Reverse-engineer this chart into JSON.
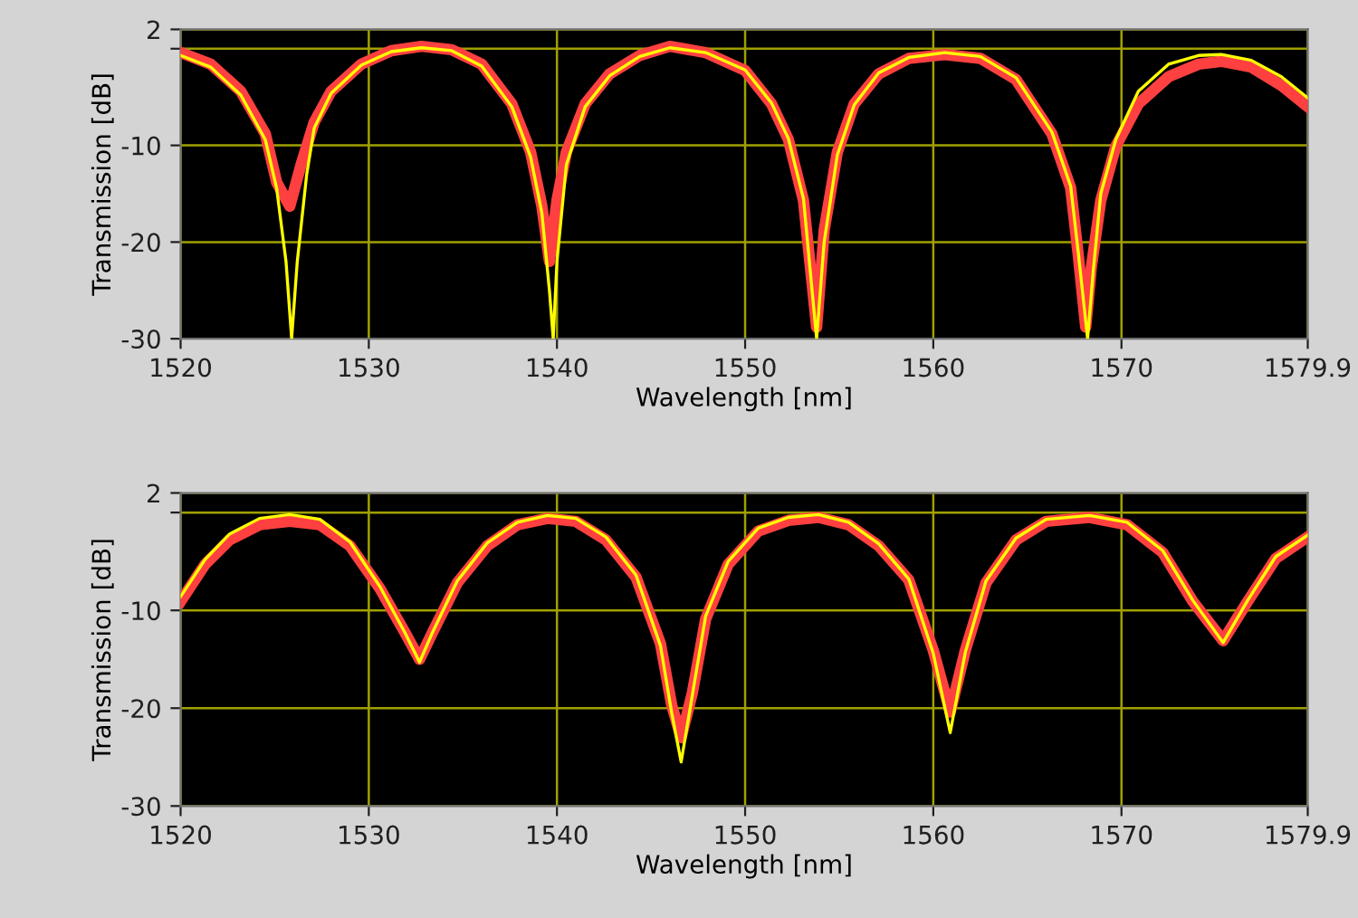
{
  "chart_data": [
    {
      "type": "line",
      "xlabel": "Wavelength [nm]",
      "ylabel": "Transmission [dB]",
      "xlim": [
        1520,
        1579.9
      ],
      "ylim": [
        -30,
        2
      ],
      "xticks": [
        1520,
        1530,
        1540,
        1550,
        1560,
        1570,
        1579.9
      ],
      "yticks": [
        2,
        {
          "value": 0,
          "label": null
        },
        -10,
        -20,
        -30
      ],
      "grid": true,
      "marker": "none",
      "line_style": "solid",
      "series": [
        {
          "color": "#ff4040",
          "x": [
            1520,
            1521.6,
            1523.2,
            1524.5,
            1525.1,
            1525.8,
            1526.4,
            1527.1,
            1528.0,
            1529.6,
            1531.2,
            1532.8,
            1534.4,
            1536.0,
            1537.6,
            1538.6,
            1539.2,
            1539.6,
            1540.0,
            1540.5,
            1541.5,
            1542.8,
            1544.4,
            1546.0,
            1547.9,
            1550.0,
            1551.4,
            1552.3,
            1553.1,
            1553.8,
            1554.2,
            1554.9,
            1555.8,
            1557.1,
            1558.7,
            1560.6,
            1562.5,
            1564.4,
            1566.3,
            1567.3,
            1567.7,
            1568.1,
            1568.4,
            1568.9,
            1569.7,
            1570.9,
            1572.5,
            1574.1,
            1575.3,
            1576.9,
            1578.5,
            1579.9
          ],
          "values": [
            -0.4,
            -1.6,
            -4.4,
            -8.8,
            -13.8,
            -16.3,
            -12,
            -7.6,
            -4.4,
            -1.6,
            -0.2,
            0.25,
            -0.1,
            -1.6,
            -5.7,
            -10.7,
            -16.3,
            -22,
            -15.7,
            -10.7,
            -5.7,
            -2.6,
            -0.7,
            0.25,
            -0.4,
            -2.25,
            -5.7,
            -9.4,
            -15.7,
            -28.8,
            -18.8,
            -10.7,
            -5.7,
            -2.6,
            -1,
            -0.6,
            -1,
            -3.2,
            -8.8,
            -14.4,
            -21.3,
            -28.8,
            -22.6,
            -15.7,
            -10.1,
            -5.7,
            -2.9,
            -1.6,
            -1.3,
            -1.9,
            -3.8,
            -6
          ]
        },
        {
          "color": "#ffff00",
          "x": [
            1520,
            1521.6,
            1523.2,
            1524.5,
            1525.1,
            1525.6,
            1525.9,
            1526.2,
            1526.7,
            1527.1,
            1528.0,
            1529.6,
            1531.2,
            1532.8,
            1534.4,
            1536.0,
            1537.6,
            1538.6,
            1539.2,
            1539.6,
            1539.8,
            1540.0,
            1540.5,
            1541.5,
            1542.8,
            1544.4,
            1546.0,
            1547.9,
            1550.0,
            1551.4,
            1552.3,
            1553.1,
            1553.8,
            1554.2,
            1554.9,
            1555.8,
            1557.1,
            1558.7,
            1560.6,
            1562.5,
            1564.4,
            1566.3,
            1567.3,
            1567.7,
            1568.2,
            1568.5,
            1568.9,
            1569.7,
            1570.9,
            1572.5,
            1574.1,
            1575.3,
            1576.9,
            1578.5,
            1579.9
          ],
          "values": [
            -0.7,
            -1.9,
            -4.8,
            -9.4,
            -14.4,
            -22,
            -30,
            -22,
            -13,
            -8.2,
            -4.6,
            -1.7,
            -0.3,
            0.1,
            -0.2,
            -1.8,
            -6,
            -11.2,
            -17,
            -25,
            -30,
            -22,
            -12,
            -6,
            -2.8,
            -0.8,
            0.1,
            -0.4,
            -2.2,
            -5.6,
            -9.3,
            -15.5,
            -30,
            -20,
            -11,
            -5.8,
            -2.5,
            -0.9,
            -0.4,
            -0.8,
            -3,
            -8.6,
            -14.2,
            -21,
            -30,
            -23,
            -15,
            -9.4,
            -4.4,
            -1.6,
            -0.7,
            -0.6,
            -1.2,
            -2.9,
            -5.1
          ]
        }
      ]
    },
    {
      "type": "line",
      "xlabel": "Wavelength [nm]",
      "ylabel": "Transmission [dB]",
      "xlim": [
        1520,
        1579.9
      ],
      "ylim": [
        -30,
        2
      ],
      "xticks": [
        1520,
        1530,
        1540,
        1550,
        1560,
        1570,
        1579.9
      ],
      "yticks": [
        2,
        {
          "value": 0,
          "label": null
        },
        -10,
        -20,
        -30
      ],
      "grid": true,
      "marker": "none",
      "line_style": "solid",
      "series": [
        {
          "color": "#ff4040",
          "x": [
            1520,
            1521.3,
            1522.6,
            1524.2,
            1525.8,
            1527.4,
            1529.0,
            1530.6,
            1531.9,
            1532.7,
            1533.4,
            1534.7,
            1536.3,
            1537.9,
            1539.5,
            1541.0,
            1542.6,
            1544.2,
            1545.5,
            1546.1,
            1546.6,
            1547.2,
            1547.9,
            1549.1,
            1550.7,
            1552.3,
            1553.9,
            1555.5,
            1557.1,
            1558.7,
            1560.0,
            1560.9,
            1561.7,
            1562.8,
            1564.4,
            1566.0,
            1568.3,
            1570.3,
            1572.2,
            1573.8,
            1575.4,
            1576.7,
            1578.2,
            1579.9
          ],
          "values": [
            -9.1,
            -5.3,
            -2.8,
            -1.25,
            -0.9,
            -1.25,
            -3.4,
            -7.8,
            -12.2,
            -15,
            -12.2,
            -7.2,
            -3.4,
            -1.25,
            -0.6,
            -0.9,
            -2.8,
            -6.6,
            -13.4,
            -19.7,
            -23,
            -18.4,
            -10.9,
            -5.3,
            -1.9,
            -0.8,
            -0.5,
            -1.25,
            -3.4,
            -6.9,
            -14.1,
            -20.4,
            -14.1,
            -7.2,
            -2.8,
            -0.9,
            -0.5,
            -1.25,
            -4.1,
            -9.1,
            -13.1,
            -9.1,
            -4.7,
            -2.5
          ]
        },
        {
          "color": "#ffff00",
          "x": [
            1520,
            1521.3,
            1522.6,
            1524.2,
            1525.8,
            1527.4,
            1529.0,
            1530.6,
            1531.9,
            1532.7,
            1533.4,
            1534.7,
            1536.3,
            1537.9,
            1539.5,
            1541.0,
            1542.6,
            1544.2,
            1545.5,
            1546.1,
            1546.6,
            1547.2,
            1547.9,
            1549.1,
            1550.7,
            1552.3,
            1553.9,
            1555.5,
            1557.1,
            1558.7,
            1560.0,
            1560.9,
            1561.7,
            1562.8,
            1564.4,
            1566.0,
            1568.3,
            1570.3,
            1572.2,
            1573.8,
            1575.4,
            1576.7,
            1578.2,
            1579.9
          ],
          "values": [
            -8.6,
            -4.8,
            -2.2,
            -0.6,
            -0.2,
            -0.7,
            -3,
            -7.6,
            -12.2,
            -15.3,
            -12.2,
            -7,
            -3.1,
            -1,
            -0.3,
            -0.6,
            -2.5,
            -6.4,
            -13.6,
            -20.5,
            -25.5,
            -18.6,
            -10.6,
            -5,
            -1.6,
            -0.5,
            -0.2,
            -1,
            -3.2,
            -6.8,
            -14.4,
            -22.5,
            -14.3,
            -7,
            -2.6,
            -0.7,
            -0.3,
            -1,
            -3.9,
            -9,
            -13.3,
            -9,
            -4.5,
            -2.3
          ]
        }
      ]
    }
  ]
}
